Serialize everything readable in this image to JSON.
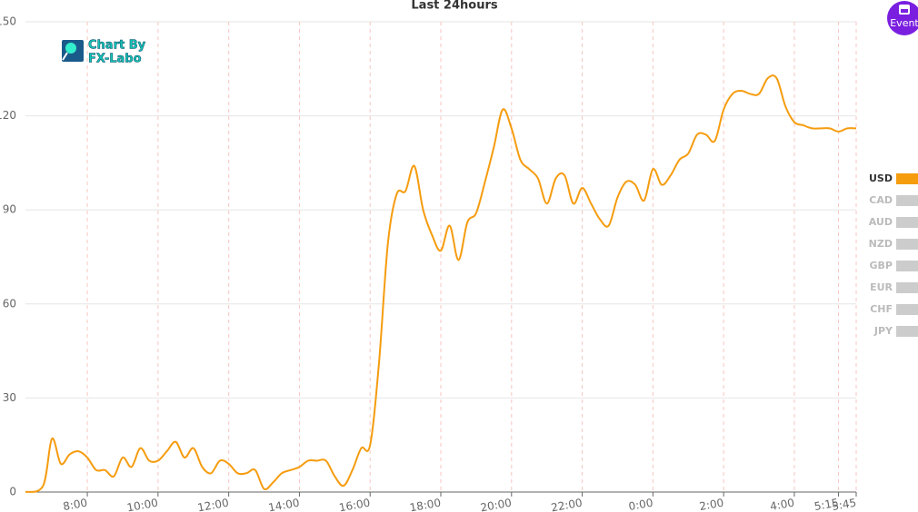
{
  "chart_data": {
    "type": "line",
    "title": "Last 24hours",
    "x": [
      6.25,
      6.75,
      7,
      7.25,
      7.5,
      7.75,
      8,
      8.25,
      8.5,
      8.75,
      9,
      9.25,
      9.5,
      9.75,
      10,
      10.25,
      10.5,
      10.75,
      11,
      11.25,
      11.5,
      11.75,
      12,
      12.25,
      12.5,
      12.75,
      13,
      13.25,
      13.5,
      13.75,
      14,
      14.25,
      14.5,
      14.75,
      15,
      15.25,
      15.5,
      15.75,
      16,
      16.25,
      16.5,
      16.75,
      17,
      17.25,
      17.5,
      17.75,
      18,
      18.25,
      18.5,
      18.75,
      19,
      19.25,
      19.5,
      19.75,
      20,
      20.25,
      20.5,
      20.75,
      21,
      21.25,
      21.5,
      21.75,
      22,
      22.25,
      22.5,
      22.75,
      23,
      23.25,
      23.5,
      23.75,
      24,
      24.25,
      24.5,
      24.75,
      25,
      25.25,
      25.5,
      25.75,
      26,
      26.25,
      26.5,
      26.75,
      27,
      27.25,
      27.5,
      27.75,
      28,
      28.25,
      28.5,
      28.75,
      29,
      29.25,
      29.5,
      29.75
    ],
    "series": [
      {
        "name": "USD",
        "color": "#f59c0f",
        "values": [
          0,
          2,
          17,
          9,
          12,
          13,
          11,
          7,
          7,
          5,
          11,
          8,
          14,
          10,
          10,
          13,
          16,
          11,
          14,
          8,
          6,
          10,
          9,
          6,
          6,
          7,
          1,
          3,
          6,
          7,
          8,
          10,
          10,
          10,
          5,
          2,
          7,
          14,
          15,
          41,
          79,
          95,
          96,
          104,
          90,
          82,
          77,
          85,
          74,
          86,
          89,
          99,
          110,
          122,
          116,
          106,
          103,
          100,
          92,
          100,
          101,
          92,
          97,
          92,
          87,
          85,
          94,
          99,
          98,
          93,
          103,
          98,
          101,
          106,
          108,
          114,
          114,
          112,
          122,
          127,
          128,
          127,
          127,
          132,
          132,
          123,
          118,
          117,
          116,
          116,
          116,
          115,
          116,
          116
        ]
      }
    ],
    "legend": [
      {
        "name": "USD",
        "color": "#f59c0f",
        "active": true
      },
      {
        "name": "CAD",
        "color": "#cccccc",
        "active": false
      },
      {
        "name": "AUD",
        "color": "#cccccc",
        "active": false
      },
      {
        "name": "NZD",
        "color": "#cccccc",
        "active": false
      },
      {
        "name": "GBP",
        "color": "#cccccc",
        "active": false
      },
      {
        "name": "EUR",
        "color": "#cccccc",
        "active": false
      },
      {
        "name": "CHF",
        "color": "#cccccc",
        "active": false
      },
      {
        "name": "JPY",
        "color": "#cccccc",
        "active": false
      }
    ],
    "xlim": [
      6.25,
      29.75
    ],
    "xticks": [
      {
        "value": 8,
        "label": "8:00"
      },
      {
        "value": 10,
        "label": "10:00"
      },
      {
        "value": 12,
        "label": "12:00"
      },
      {
        "value": 14,
        "label": "14:00"
      },
      {
        "value": 16,
        "label": "16:00"
      },
      {
        "value": 18,
        "label": "18:00"
      },
      {
        "value": 20,
        "label": "20:00"
      },
      {
        "value": 22,
        "label": "22:00"
      },
      {
        "value": 24,
        "label": "0:00"
      },
      {
        "value": 26,
        "label": "2:00"
      },
      {
        "value": 28,
        "label": "4:00"
      },
      {
        "value": 29.25,
        "label": "5:15"
      },
      {
        "value": 29.75,
        "label": "5:45"
      }
    ],
    "ylim": [
      0,
      150
    ],
    "yticks": [
      0,
      30,
      60,
      90,
      120,
      150
    ],
    "grid": true
  },
  "logo": {
    "line1": "Chart By",
    "line2": "FX-Labo"
  },
  "button": "Event"
}
